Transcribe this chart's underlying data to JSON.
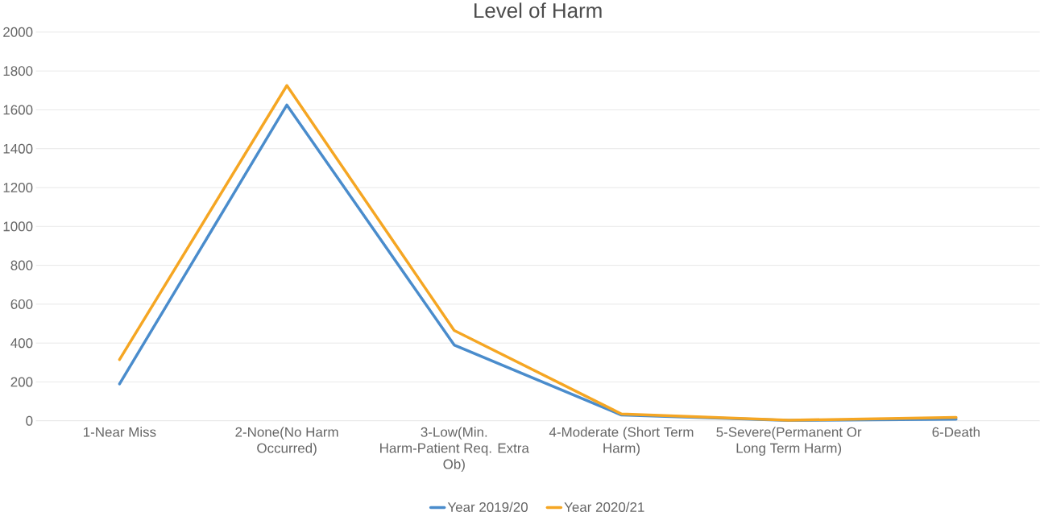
{
  "chart_data": {
    "type": "line",
    "title": "Level of Harm",
    "categories": [
      "1-Near Miss",
      "2-None(No Harm Occurred)",
      "3-Low(Min. Harm-Patient Req. Extra Ob)",
      "4-Moderate (Short Term Harm)",
      "5-Severe(Permanent Or Long Term Harm)",
      "6-Death"
    ],
    "series": [
      {
        "name": "Year 2019/20",
        "color": "#4a8ccc",
        "values": [
          190,
          1625,
          390,
          30,
          2,
          8
        ]
      },
      {
        "name": "Year 2020/21",
        "color": "#f5a623",
        "values": [
          315,
          1725,
          465,
          35,
          3,
          18
        ]
      }
    ],
    "ylim": [
      0,
      2000
    ],
    "yticks": [
      0,
      200,
      400,
      600,
      800,
      1000,
      1200,
      1400,
      1600,
      1800,
      2000
    ],
    "grid": "y",
    "legend": "bottom",
    "marker": "none",
    "line_style": "solid"
  }
}
